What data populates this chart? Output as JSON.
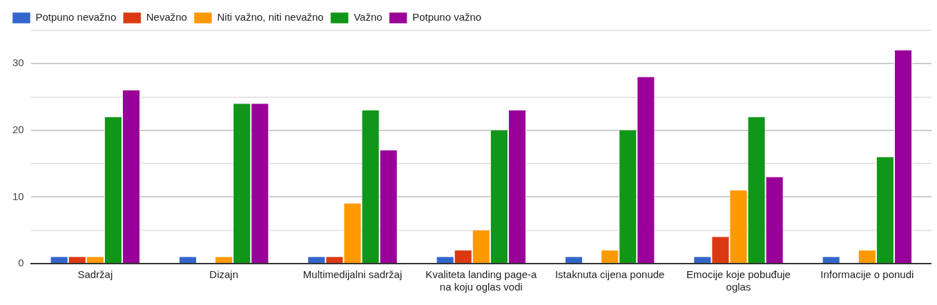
{
  "chart_data": {
    "type": "bar",
    "categories": [
      "Sadržaj",
      "Dizajn",
      "Multimedijalni sadržaj",
      "Kvaliteta landing page-a na koju oglas vodi",
      "Istaknuta cijena ponude",
      "Emocije koje pobuđuje oglas",
      "Informacije o ponudi"
    ],
    "series": [
      {
        "name": "Potpuno nevažno",
        "color": "#3366cc",
        "values": [
          1,
          1,
          1,
          1,
          1,
          1,
          1
        ]
      },
      {
        "name": "Nevažno",
        "color": "#dc3912",
        "values": [
          1,
          0,
          1,
          2,
          0,
          4,
          0
        ]
      },
      {
        "name": "Niti važno, niti nevažno",
        "color": "#ff9900",
        "values": [
          1,
          1,
          9,
          5,
          2,
          11,
          2
        ]
      },
      {
        "name": "Važno",
        "color": "#109618",
        "values": [
          22,
          24,
          23,
          20,
          20,
          22,
          16
        ]
      },
      {
        "name": "Potpuno važno",
        "color": "#990099",
        "values": [
          26,
          24,
          17,
          23,
          28,
          13,
          32
        ]
      }
    ],
    "ylim": [
      0,
      35
    ],
    "yticks": [
      0,
      {
        "value": 5,
        "label": null
      },
      10,
      {
        "value": 15,
        "label": null
      },
      20,
      {
        "value": 25,
        "label": null
      },
      30,
      {
        "value": 35,
        "label": null
      }
    ],
    "grid": "y",
    "legend": "top left"
  }
}
